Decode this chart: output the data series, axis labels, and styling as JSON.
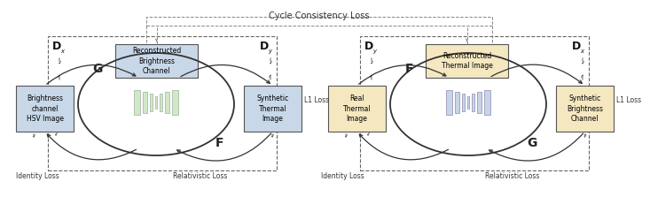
{
  "title": "Cycle Consistency Loss",
  "bg_color": "#ffffff",
  "left_diagram": {
    "box_left_label": "Brightness\nchannel\nHSV Image",
    "box_left_color": "#c8d8e8",
    "box_right_label": "Synthetic\nThermal\nImage",
    "box_right_color": "#c8d8e8",
    "box_top_label": "Reconstructed\nBrightness\nChannel",
    "box_top_color": "#c8d8e8",
    "cnn_color": "#d0e8c8",
    "cnn_edge": "#aabbaa",
    "label_G": "G",
    "label_F": "F",
    "label_left_D": "D",
    "label_left_sub": "x",
    "label_right_D": "D",
    "label_right_sub": "y",
    "identity_loss": "Identity Loss",
    "relativistic_loss": "Relativistic Loss",
    "l1_loss": "L1 Loss"
  },
  "right_diagram": {
    "box_left_label": "Real\nThermal\nImage",
    "box_left_color": "#f5e8c0",
    "box_right_label": "Synthetic\nBrightness\nChannel",
    "box_right_color": "#f5e8c0",
    "box_top_label": "Reconstructed\nThermal Image",
    "box_top_color": "#f5e8c0",
    "cnn_color": "#c8d4e8",
    "cnn_edge": "#9999bb",
    "label_G": "G",
    "label_F": "F",
    "label_left_D": "D",
    "label_left_sub": "y",
    "label_right_D": "D",
    "label_right_sub": "x",
    "identity_loss": "Identity Loss",
    "relativistic_loss": "Relativistic Loss",
    "l1_loss": "L1 Loss"
  },
  "arrow_color": "#333333",
  "dashed_color": "#666666",
  "text_color": "#333333"
}
